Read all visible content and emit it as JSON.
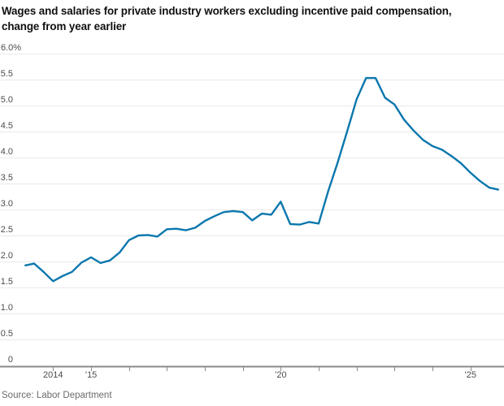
{
  "header": {
    "line1": "Wages and salaries for private industry workers excluding incentive paid compensation,",
    "line2": "change from year earlier"
  },
  "source": "Source: Labor Department",
  "chart_data": {
    "type": "line",
    "title": "Wages and salaries for private industry workers excluding incentive paid compensation, change from year earlier",
    "unit": "percent, change from year earlier",
    "grid": "horizontal",
    "legend_position": "none",
    "series_name": "Wages and salaries, private industry excl. incentive paid",
    "x_unit": "decimal year (quarterly)",
    "x": [
      2013.25,
      2013.5,
      2013.75,
      2014.0,
      2014.25,
      2014.5,
      2014.75,
      2015.0,
      2015.25,
      2015.5,
      2015.75,
      2016.0,
      2016.25,
      2016.5,
      2016.75,
      2017.0,
      2017.25,
      2017.5,
      2017.75,
      2018.0,
      2018.25,
      2018.5,
      2018.75,
      2019.0,
      2019.25,
      2019.5,
      2019.75,
      2020.0,
      2020.25,
      2020.5,
      2020.75,
      2021.0,
      2021.25,
      2021.5,
      2021.75,
      2022.0,
      2022.25,
      2022.5,
      2022.75,
      2023.0,
      2023.25,
      2023.5,
      2023.75,
      2024.0,
      2024.25,
      2024.5,
      2024.75,
      2025.0,
      2025.25,
      2025.5,
      2025.75
    ],
    "values": [
      1.92,
      1.96,
      1.8,
      1.62,
      1.72,
      1.8,
      1.98,
      2.08,
      1.97,
      2.02,
      2.17,
      2.41,
      2.5,
      2.51,
      2.48,
      2.62,
      2.63,
      2.6,
      2.65,
      2.78,
      2.87,
      2.95,
      2.97,
      2.95,
      2.79,
      2.92,
      2.9,
      3.15,
      2.72,
      2.71,
      2.76,
      2.73,
      3.35,
      3.9,
      4.5,
      5.12,
      5.53,
      5.53,
      5.15,
      5.02,
      4.73,
      4.52,
      4.34,
      4.22,
      4.15,
      4.03,
      3.89,
      3.71,
      3.55,
      3.42,
      3.38
    ],
    "ylim": [
      0,
      6.0
    ],
    "yticks": [
      0,
      0.5,
      1.0,
      1.5,
      2.0,
      2.5,
      3.0,
      3.5,
      4.0,
      4.5,
      5.0,
      5.5,
      6.0
    ],
    "ytick_labels": [
      "0",
      "0.5",
      "1.0",
      "1.5",
      "2.0",
      "2.5",
      "3.0",
      "3.5",
      "4.0",
      "4.5",
      "5.0",
      "5.5",
      "6.0%"
    ],
    "xticks": [
      2014,
      2015,
      2016,
      2017,
      2018,
      2019,
      2020,
      2021,
      2022,
      2023,
      2024,
      2025
    ],
    "xtick_labels": [
      "2014",
      "’15",
      "",
      "",
      "",
      "",
      "’20",
      "",
      "",
      "",
      "",
      "’25"
    ],
    "line_color": "#0b77ad",
    "grid_color": "#e9e9e9",
    "axis_color": "#8a8a8a",
    "label_color": "#4c4c4c"
  }
}
